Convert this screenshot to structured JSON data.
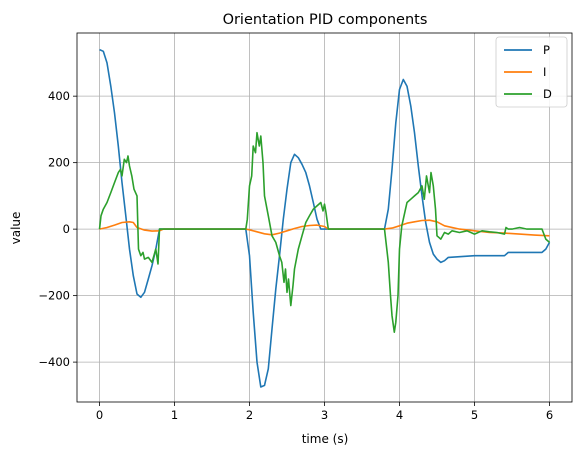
{
  "chart_data": {
    "type": "line",
    "title": "Orientation PID components",
    "xlabel": "time (s)",
    "ylabel": "value",
    "xlim": [
      -0.3,
      6.3
    ],
    "ylim": [
      -520,
      590
    ],
    "xticks": [
      0,
      1,
      2,
      3,
      4,
      5,
      6
    ],
    "yticks": [
      -400,
      -200,
      0,
      200,
      400
    ],
    "grid": true,
    "legend": "top-right",
    "series": [
      {
        "name": "P",
        "color": "#1f77b4",
        "x": [
          0.0,
          0.05,
          0.1,
          0.15,
          0.2,
          0.25,
          0.3,
          0.35,
          0.4,
          0.45,
          0.5,
          0.55,
          0.6,
          0.65,
          0.7,
          0.75,
          0.8,
          0.85,
          1.95,
          2.0,
          2.05,
          2.1,
          2.15,
          2.2,
          2.25,
          2.3,
          2.35,
          2.4,
          2.45,
          2.5,
          2.55,
          2.6,
          2.65,
          2.7,
          2.75,
          2.8,
          2.85,
          2.9,
          2.95,
          3.0,
          3.05,
          3.8,
          3.85,
          3.9,
          3.95,
          4.0,
          4.05,
          4.1,
          4.15,
          4.2,
          4.25,
          4.3,
          4.35,
          4.4,
          4.45,
          4.5,
          4.55,
          4.6,
          4.65,
          5.0,
          5.4,
          5.45,
          5.5,
          5.9,
          5.95,
          6.0
        ],
        "y": [
          540,
          535,
          500,
          430,
          350,
          250,
          140,
          40,
          -60,
          -140,
          -195,
          -205,
          -190,
          -150,
          -110,
          -60,
          0,
          0,
          0,
          -80,
          -250,
          -400,
          -475,
          -470,
          -420,
          -300,
          -180,
          -80,
          30,
          120,
          200,
          225,
          215,
          195,
          170,
          130,
          80,
          30,
          0,
          0,
          0,
          0,
          60,
          180,
          320,
          420,
          450,
          430,
          370,
          290,
          190,
          100,
          20,
          -40,
          -75,
          -90,
          -100,
          -95,
          -85,
          -80,
          -80,
          -70,
          -70,
          -70,
          -60,
          -40
        ]
      },
      {
        "name": "I",
        "color": "#ff7f0e",
        "x": [
          0.0,
          0.1,
          0.2,
          0.3,
          0.4,
          0.45,
          0.5,
          0.6,
          0.7,
          0.8,
          0.85,
          1.95,
          2.0,
          2.1,
          2.2,
          2.3,
          2.4,
          2.5,
          2.6,
          2.7,
          2.8,
          2.9,
          3.0,
          3.05,
          3.8,
          3.9,
          4.0,
          4.1,
          4.2,
          4.3,
          4.4,
          4.5,
          4.6,
          4.8,
          5.0,
          5.2,
          5.4,
          5.6,
          5.8,
          6.0
        ],
        "y": [
          0,
          5,
          12,
          20,
          22,
          20,
          5,
          -3,
          -6,
          -5,
          0,
          0,
          -2,
          -8,
          -14,
          -17,
          -12,
          -5,
          2,
          8,
          11,
          12,
          8,
          0,
          0,
          3,
          10,
          18,
          22,
          26,
          27,
          22,
          10,
          0,
          -5,
          -10,
          -12,
          -15,
          -18,
          -20
        ]
      },
      {
        "name": "D",
        "color": "#2ca02c",
        "x": [
          0.0,
          0.02,
          0.05,
          0.1,
          0.15,
          0.2,
          0.25,
          0.28,
          0.3,
          0.33,
          0.36,
          0.38,
          0.4,
          0.43,
          0.46,
          0.5,
          0.52,
          0.55,
          0.58,
          0.6,
          0.65,
          0.7,
          0.75,
          0.78,
          0.8,
          0.85,
          1.95,
          1.97,
          2.0,
          2.03,
          2.05,
          2.08,
          2.1,
          2.13,
          2.15,
          2.18,
          2.2,
          2.25,
          2.3,
          2.35,
          2.4,
          2.43,
          2.46,
          2.48,
          2.5,
          2.52,
          2.55,
          2.58,
          2.6,
          2.65,
          2.7,
          2.75,
          2.8,
          2.85,
          2.9,
          2.95,
          2.98,
          3.0,
          3.02,
          3.05,
          3.8,
          3.83,
          3.85,
          3.88,
          3.9,
          3.93,
          3.95,
          3.98,
          4.0,
          4.03,
          4.05,
          4.08,
          4.1,
          4.15,
          4.2,
          4.25,
          4.3,
          4.33,
          4.36,
          4.4,
          4.42,
          4.45,
          4.48,
          4.5,
          4.55,
          4.6,
          4.65,
          4.7,
          4.8,
          4.9,
          5.0,
          5.1,
          5.2,
          5.3,
          5.4,
          5.42,
          5.45,
          5.5,
          5.6,
          5.7,
          5.8,
          5.9,
          5.95,
          6.0
        ],
        "y": [
          0,
          40,
          60,
          80,
          110,
          140,
          170,
          180,
          160,
          210,
          200,
          220,
          190,
          160,
          120,
          100,
          -60,
          -80,
          -70,
          -90,
          -85,
          -100,
          -60,
          -105,
          0,
          0,
          0,
          30,
          130,
          160,
          250,
          230,
          290,
          250,
          280,
          200,
          100,
          40,
          -20,
          -40,
          -80,
          -100,
          -160,
          -120,
          -190,
          -150,
          -230,
          -170,
          -120,
          -60,
          -20,
          20,
          40,
          60,
          70,
          80,
          55,
          75,
          50,
          0,
          0,
          -60,
          -100,
          -200,
          -260,
          -310,
          -280,
          -200,
          -60,
          10,
          30,
          60,
          80,
          90,
          100,
          110,
          130,
          90,
          160,
          110,
          170,
          130,
          60,
          -20,
          -30,
          -10,
          -15,
          -5,
          -10,
          -5,
          -15,
          -5,
          -8,
          -10,
          -15,
          5,
          0,
          0,
          5,
          0,
          0,
          0,
          -30,
          -40
        ]
      }
    ]
  }
}
